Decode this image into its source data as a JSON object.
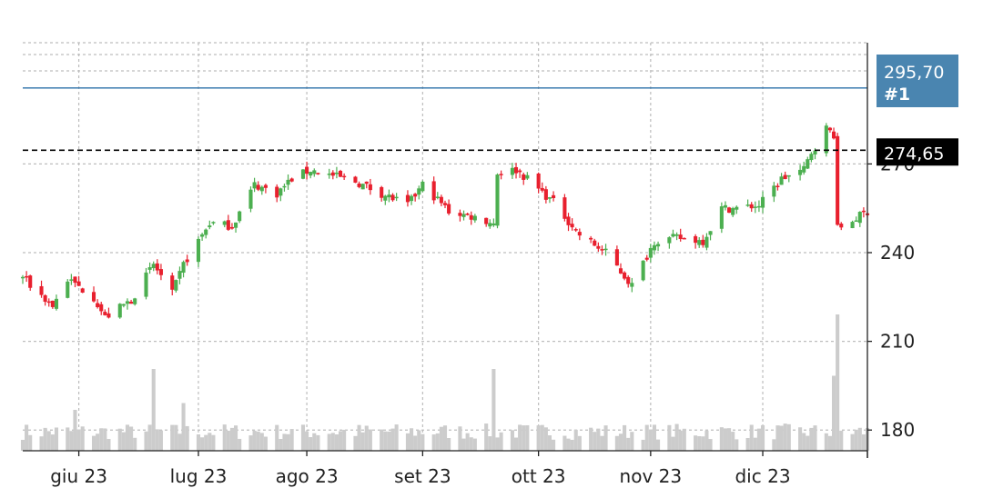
{
  "chart_data": {
    "type": "candlestick",
    "x_axis": {
      "tick_labels": [
        "giu 23",
        "lug 23",
        "ago 23",
        "set 23",
        "ott 23",
        "nov 23",
        "dic 23"
      ],
      "range": [
        "2023-05-17",
        "2023-12-29"
      ]
    },
    "y_axis": {
      "tick_labels": [
        "180",
        "210",
        "240",
        "270"
      ],
      "range": [
        173,
        311
      ],
      "position": "right"
    },
    "grid": true,
    "grid_style": "dotted",
    "horizontal_lines": [
      {
        "label": "295,70",
        "sublabel": "#1",
        "value": 295.7,
        "style": "solid",
        "color": "#2a6fa8",
        "badge_color": "#4a85b0"
      },
      {
        "label": "274,65",
        "value": 274.65,
        "style": "dashed",
        "color": "#000000",
        "badge_color": "#000000"
      }
    ],
    "price_anchors": [
      {
        "date": "2023-05-17",
        "price": 232
      },
      {
        "date": "2023-05-19",
        "price": 229
      },
      {
        "date": "2023-05-25",
        "price": 222
      },
      {
        "date": "2023-05-29",
        "price": 231
      },
      {
        "date": "2023-06-05",
        "price": 225
      },
      {
        "date": "2023-06-08",
        "price": 218
      },
      {
        "date": "2023-06-15",
        "price": 224
      },
      {
        "date": "2023-06-21",
        "price": 236
      },
      {
        "date": "2023-06-26",
        "price": 226
      },
      {
        "date": "2023-06-29",
        "price": 236
      },
      {
        "date": "2023-07-06",
        "price": 250
      },
      {
        "date": "2023-07-12",
        "price": 249
      },
      {
        "date": "2023-07-18",
        "price": 263
      },
      {
        "date": "2023-07-24",
        "price": 260
      },
      {
        "date": "2023-07-28",
        "price": 265
      },
      {
        "date": "2023-08-02",
        "price": 268
      },
      {
        "date": "2023-08-08",
        "price": 266
      },
      {
        "date": "2023-08-14",
        "price": 264
      },
      {
        "date": "2023-08-21",
        "price": 260
      },
      {
        "date": "2023-08-28",
        "price": 256
      },
      {
        "date": "2023-09-01",
        "price": 263
      },
      {
        "date": "2023-09-08",
        "price": 254
      },
      {
        "date": "2023-09-15",
        "price": 252
      },
      {
        "date": "2023-09-20",
        "price": 250
      },
      {
        "date": "2023-09-21",
        "price": 267
      },
      {
        "date": "2023-09-26",
        "price": 268
      },
      {
        "date": "2023-09-29",
        "price": 265
      },
      {
        "date": "2023-10-06",
        "price": 257
      },
      {
        "date": "2023-10-13",
        "price": 246
      },
      {
        "date": "2023-10-20",
        "price": 240
      },
      {
        "date": "2023-10-25",
        "price": 232
      },
      {
        "date": "2023-10-27",
        "price": 229
      },
      {
        "date": "2023-11-02",
        "price": 244
      },
      {
        "date": "2023-11-08",
        "price": 245
      },
      {
        "date": "2023-11-15",
        "price": 244
      },
      {
        "date": "2023-11-20",
        "price": 255
      },
      {
        "date": "2023-11-24",
        "price": 255
      },
      {
        "date": "2023-11-30",
        "price": 256
      },
      {
        "date": "2023-12-06",
        "price": 265
      },
      {
        "date": "2023-12-12",
        "price": 268
      },
      {
        "date": "2023-12-14",
        "price": 274
      },
      {
        "date": "2023-12-18",
        "price": 282
      },
      {
        "date": "2023-12-20",
        "price": 280
      },
      {
        "date": "2023-12-21",
        "price": 248
      },
      {
        "date": "2023-12-29",
        "price": 254
      }
    ],
    "volume_spikes": [
      {
        "date": "2023-05-31",
        "level": 0.3
      },
      {
        "date": "2023-06-21",
        "level": 0.6
      },
      {
        "date": "2023-06-29",
        "level": 0.35
      },
      {
        "date": "2023-09-20",
        "level": 0.6
      },
      {
        "date": "2023-12-20",
        "level": 0.55
      },
      {
        "date": "2023-12-21",
        "level": 1.0
      }
    ],
    "candle_colors": {
      "up": "#4caf50",
      "down": "#e8202e"
    },
    "volume_color": "#cccccc"
  }
}
